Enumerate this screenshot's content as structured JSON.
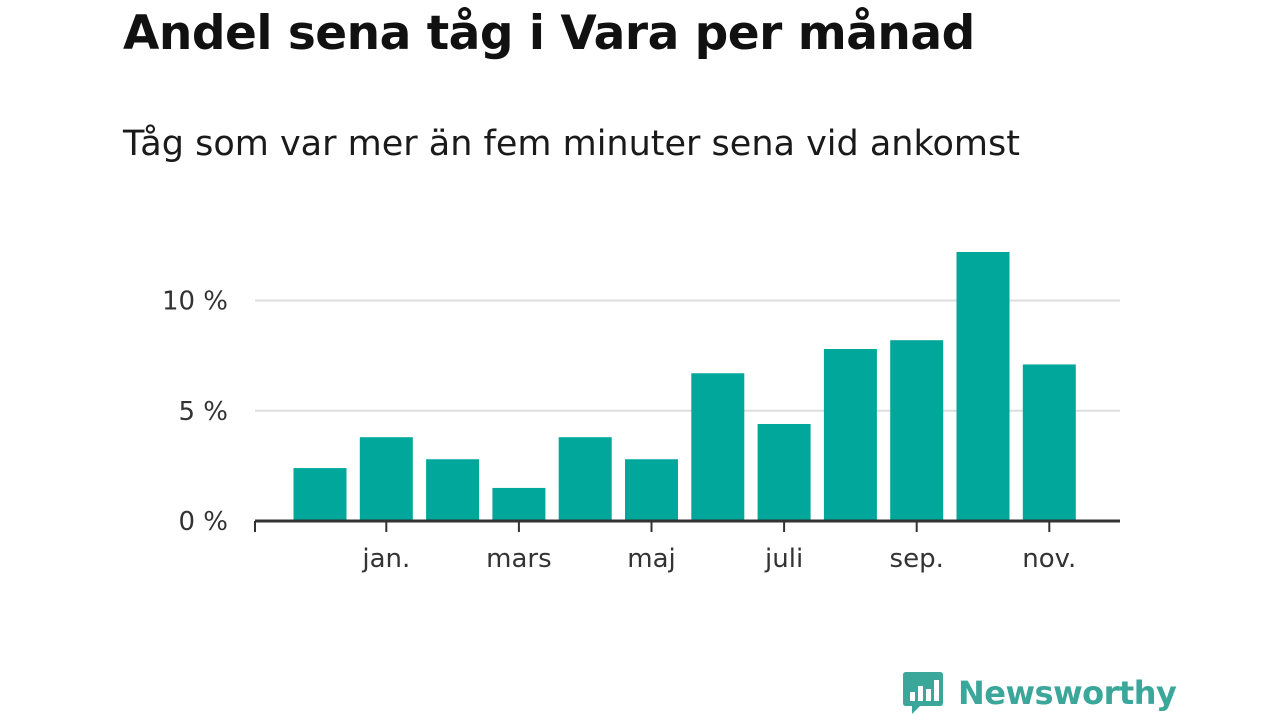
{
  "title": "Andel sena tåg i Vara per månad",
  "subtitle": "Tåg som var mer än fem minuter sena vid ankomst",
  "brand": {
    "name": "Newsworthy",
    "color": "#3aa79a",
    "icon": "bar-chart-speech-bubble-icon"
  },
  "colors": {
    "bar": "#00a79a",
    "grid": "#dddddd",
    "axis": "#333333"
  },
  "chart_data": {
    "type": "bar",
    "values": [
      2.4,
      3.8,
      2.8,
      1.5,
      3.8,
      2.8,
      6.7,
      4.4,
      7.8,
      8.2,
      12.2,
      7.1
    ],
    "x_tick_labels": [
      "jan.",
      "mars",
      "maj",
      "juli",
      "sep.",
      "nov."
    ],
    "x_tick_positions": [
      1,
      3,
      5,
      7,
      9,
      11
    ],
    "y_ticks": [
      0,
      5,
      10
    ],
    "y_tick_labels": [
      "0 %",
      "5 %",
      "10 %"
    ],
    "ylim": [
      0,
      12.2
    ],
    "grid": true,
    "xlabel": "",
    "ylabel": ""
  }
}
